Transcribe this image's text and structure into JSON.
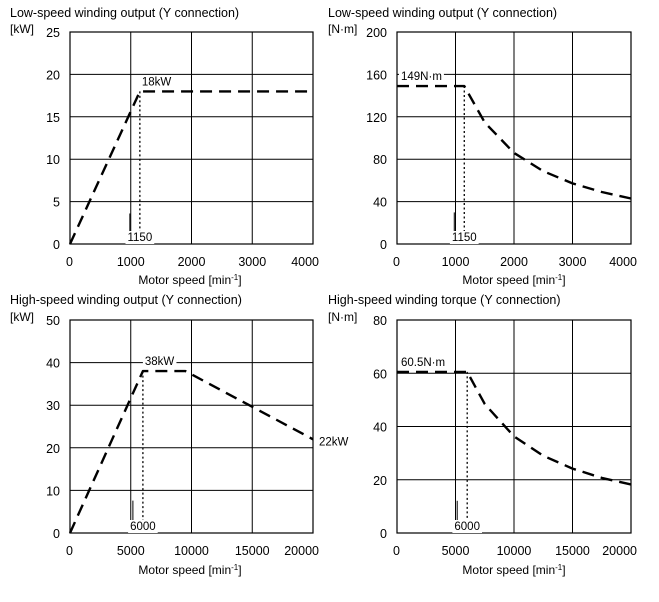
{
  "chart_data": [
    {
      "type": "line",
      "title": "Low-speed winding output (Y connection)",
      "ylabel": "[kW]",
      "xlabel": "Motor speed [min",
      "xlabel_sup": "-1",
      "xlabel_end": "]",
      "xlim": [
        0,
        4000
      ],
      "ylim": [
        0,
        25
      ],
      "xticks": [
        0,
        1000,
        2000,
        3000,
        4000
      ],
      "yticks": [
        0,
        5,
        10,
        15,
        20,
        25
      ],
      "grid": true,
      "series": [
        {
          "values_x": [
            0,
            1150,
            1150,
            4000
          ],
          "values_y": [
            0,
            18,
            18,
            18
          ],
          "style": "dashed"
        }
      ],
      "markers": [
        {
          "x": 1150,
          "label": "1150",
          "from_y": 18,
          "to_y": 0
        }
      ],
      "annotations": [
        {
          "text": "18kW",
          "x": 1150,
          "y": 18
        }
      ]
    },
    {
      "type": "line",
      "title": "Low-speed winding output (Y connection)",
      "ylabel": "[N·m]",
      "xlabel": "Motor speed [min",
      "xlabel_sup": "-1",
      "xlabel_end": "]",
      "xlim": [
        0,
        4000
      ],
      "ylim": [
        0,
        200
      ],
      "xticks": [
        0,
        1000,
        2000,
        3000,
        4000
      ],
      "yticks": [
        0,
        40,
        80,
        120,
        160,
        200
      ],
      "grid": true,
      "series": [
        {
          "values_x": [
            0,
            1150,
            1500,
            2000,
            2500,
            3000,
            3500,
            4000
          ],
          "values_y": [
            149,
            149,
            114.5,
            85.9,
            68.7,
            57.2,
            49.1,
            42.9
          ],
          "style": "dashed"
        }
      ],
      "markers": [
        {
          "x": 1150,
          "label": "1150",
          "from_y": 149,
          "to_y": 0
        }
      ],
      "annotations": [
        {
          "text": "149N·m",
          "x": 0,
          "y": 149
        }
      ]
    },
    {
      "type": "line",
      "title": "High-speed winding output (Y connection)",
      "ylabel": "[kW]",
      "xlabel": "Motor speed [min",
      "xlabel_sup": "-1",
      "xlabel_end": "]",
      "xlim": [
        0,
        20000
      ],
      "ylim": [
        0,
        50
      ],
      "xticks": [
        0,
        5000,
        10000,
        15000,
        20000
      ],
      "yticks": [
        0,
        10,
        20,
        30,
        40,
        50
      ],
      "grid": true,
      "series": [
        {
          "values_x": [
            0,
            6000,
            9500,
            20000
          ],
          "values_y": [
            0,
            38,
            38,
            22
          ],
          "style": "dashed"
        }
      ],
      "markers": [
        {
          "x": 6000,
          "label": "6000",
          "from_y": 38,
          "to_y": 0
        }
      ],
      "annotations": [
        {
          "text": "38kW",
          "x": 6000,
          "y": 38
        },
        {
          "text": "22kW",
          "x": 20000,
          "y": 22
        }
      ]
    },
    {
      "type": "line",
      "title": "High-speed winding torque (Y connection)",
      "ylabel": "[N·m]",
      "xlabel": "Motor speed [min",
      "xlabel_sup": "-1",
      "xlabel_end": "]",
      "xlim": [
        0,
        20000
      ],
      "ylim": [
        0,
        80
      ],
      "xticks": [
        0,
        5000,
        10000,
        15000,
        20000
      ],
      "yticks": [
        0,
        20,
        40,
        60,
        80
      ],
      "grid": true,
      "series": [
        {
          "values_x": [
            0,
            6000,
            7500,
            10000,
            12500,
            15000,
            17500,
            20000
          ],
          "values_y": [
            60.5,
            60.5,
            48.4,
            36.3,
            29.0,
            24.2,
            20.7,
            18.2
          ],
          "style": "dashed"
        }
      ],
      "markers": [
        {
          "x": 6000,
          "label": "6000",
          "from_y": 60.5,
          "to_y": 0
        }
      ],
      "annotations": [
        {
          "text": "60.5N·m",
          "x": 0,
          "y": 60.5
        }
      ]
    }
  ]
}
